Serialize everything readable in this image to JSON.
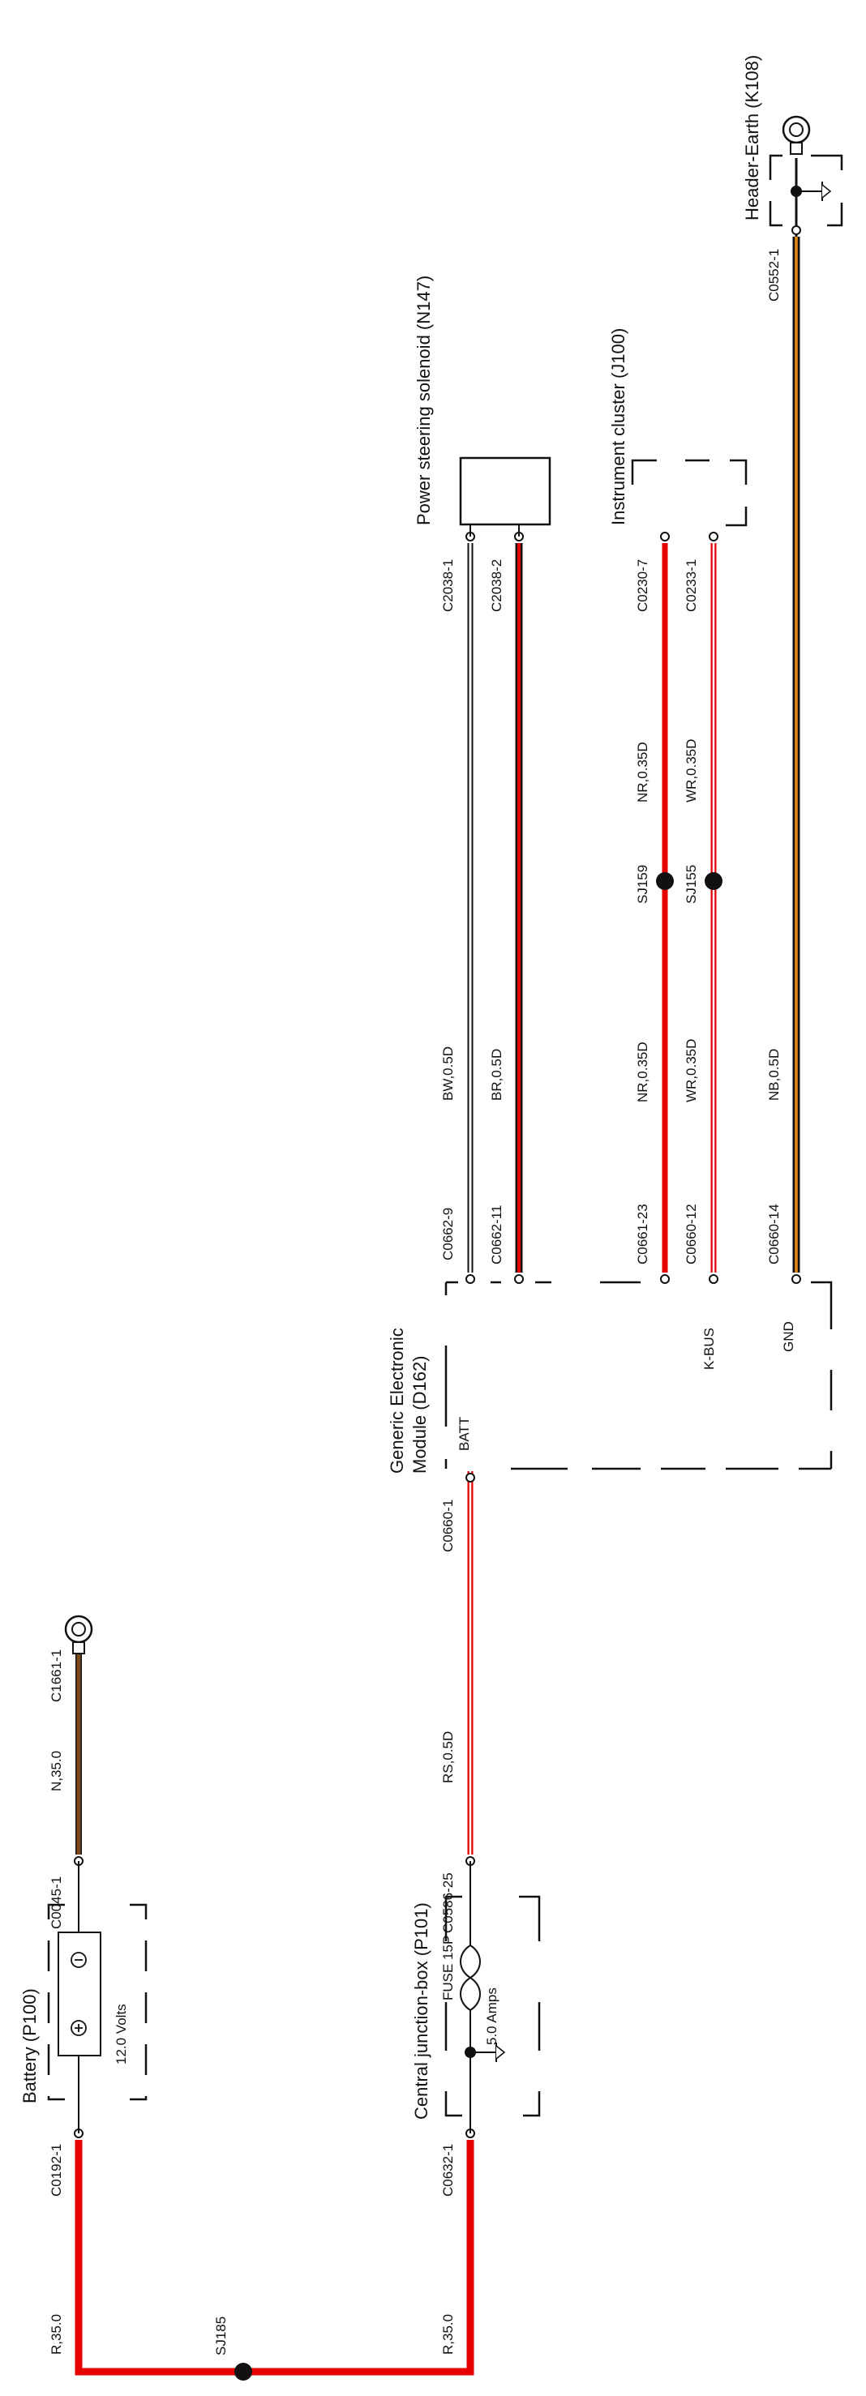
{
  "components": {
    "battery": "Battery (P100)",
    "battery_voltage": "12.0 Volts",
    "cjb": "Central junction-box (P101)",
    "fuse": "FUSE 15P",
    "fuse_rating": "5.0 Amps",
    "gem": "Generic Electronic Module (D162)",
    "gem_line1": "Generic Electronic",
    "gem_line2": "Module (D162)",
    "gem_batt": "BATT",
    "gem_kbus": "K-BUS",
    "gem_gnd": "GND",
    "pss": "Power steering solenoid (N147)",
    "cluster": "Instrument cluster (J100)",
    "earth": "Header-Earth (K108)"
  },
  "connectors": {
    "c0192_1": "C0192-1",
    "c0045_1": "C0045-1",
    "c1661_1": "C1661-1",
    "c0632_1": "C0632-1",
    "c0586_25": "C0586-25",
    "c0660_1": "C0660-1",
    "c0662_9": "C0662-9",
    "c0662_11": "C0662-11",
    "c0661_23": "C0661-23",
    "c0660_12": "C0660-12",
    "c0660_14": "C0660-14",
    "c2038_1": "C2038-1",
    "c2038_2": "C2038-2",
    "c0230_7": "C0230-7",
    "c0233_1": "C0233-1",
    "c0552_1": "C0552-1"
  },
  "wires": {
    "r35_a": "R,35.0",
    "r35_b": "R,35.0",
    "n35": "N,35.0",
    "rs05": "RS,0.5D",
    "bw05": "BW,0.5D",
    "br05": "BR,0.5D",
    "nr035_a": "NR,0.35D",
    "wr035_a": "WR,0.35D",
    "nr035_b": "NR,0.35D",
    "wr035_b": "WR,0.35D",
    "nb05": "NB,0.5D"
  },
  "splices": {
    "sj185": "SJ185",
    "sj159": "SJ159",
    "sj155": "SJ155"
  },
  "colors": {
    "red": "#e60000",
    "brown": "#7a4a1c",
    "orange": "#e88a14",
    "black": "#111111",
    "white": "#ffffff"
  }
}
